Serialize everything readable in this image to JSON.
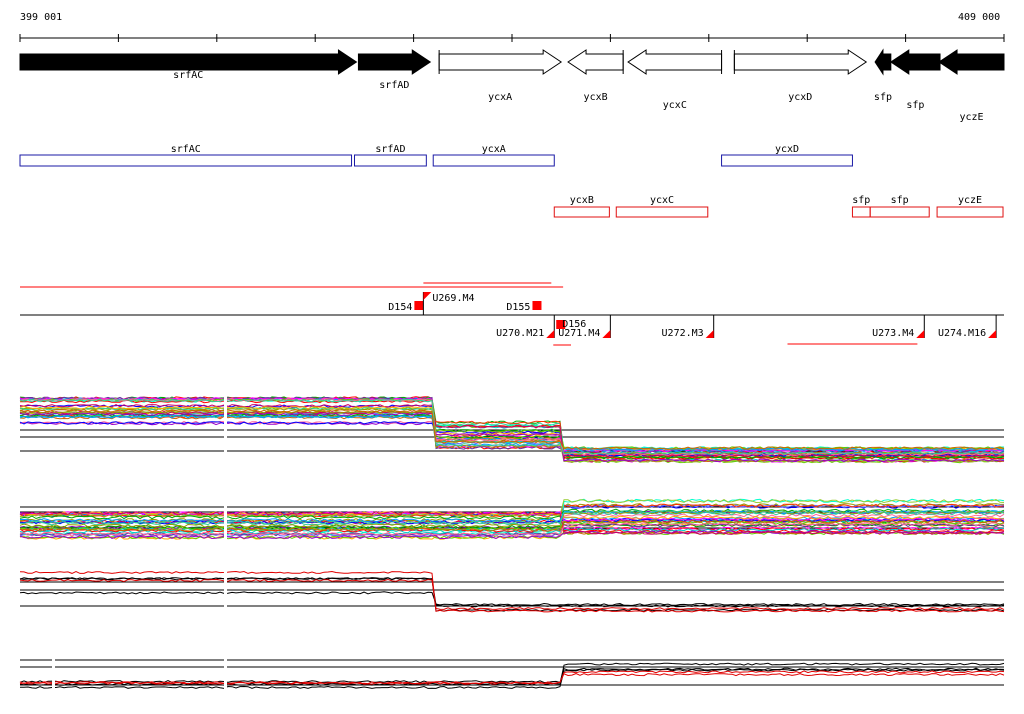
{
  "ruler": {
    "start_label": "399 001",
    "end_label": "409 000",
    "tick_count": 11
  },
  "colors": {
    "filled_gene": "#000000",
    "outline_gene": "#000000",
    "forward_box": "#1a1aa6",
    "reverse_box": "#e01010",
    "segment": "#ff0000",
    "line_black": "#000000",
    "line_red": "#e00000"
  },
  "gene_arrows": [
    {
      "label": "srfAC",
      "start": 399001,
      "end": 402420,
      "strand": "+",
      "filled": true
    },
    {
      "label": "srfAD",
      "start": 402440,
      "end": 403170,
      "strand": "+",
      "filled": true
    },
    {
      "label": "ycxA",
      "start": 403260,
      "end": 404500,
      "strand": "+",
      "filled": false
    },
    {
      "label": "ycxB",
      "start": 404570,
      "end": 405130,
      "strand": "-",
      "filled": false
    },
    {
      "label": "ycxC",
      "start": 405180,
      "end": 406130,
      "strand": "-",
      "filled": false
    },
    {
      "label": "ycxD",
      "start": 406260,
      "end": 407600,
      "strand": "+",
      "filled": false
    },
    {
      "label": "sfp",
      "start": 407690,
      "end": 407850,
      "strand": "-",
      "filled": true
    },
    {
      "label": "sfp",
      "start": 407850,
      "end": 408350,
      "strand": "-",
      "filled": true
    },
    {
      "label": "yczE",
      "start": 408340,
      "end": 409000,
      "strand": "-",
      "filled": true
    }
  ],
  "forward_boxes": [
    {
      "label": "srfAC",
      "start": 399001,
      "end": 402370
    },
    {
      "label": "srfAD",
      "start": 402400,
      "end": 403130
    },
    {
      "label": "ycxA",
      "start": 403200,
      "end": 404430
    },
    {
      "label": "ycxD",
      "start": 406130,
      "end": 407460
    }
  ],
  "reverse_boxes": [
    {
      "label": "ycxB",
      "start": 404430,
      "end": 404990
    },
    {
      "label": "ycxC",
      "start": 405060,
      "end": 405990
    },
    {
      "label": "sfp",
      "start": 407460,
      "end": 407640
    },
    {
      "label": "sfp",
      "start": 407640,
      "end": 408240
    },
    {
      "label": "yczE",
      "start": 408320,
      "end": 408990
    }
  ],
  "segments": [
    {
      "label": "D154",
      "start": 403000,
      "end": 403100,
      "row": "upper",
      "type": "square"
    },
    {
      "label": "U269.M4",
      "start": 403100,
      "end": 404400,
      "row": "upper",
      "type": "flag"
    },
    {
      "label": "D155",
      "start": 404200,
      "end": 404300,
      "row": "upper",
      "type": "square"
    },
    {
      "label": "D156",
      "start": 404450,
      "end": 404560,
      "row": "lower",
      "type": "square"
    },
    {
      "label": "U270.M21",
      "start": 403900,
      "end": 404430,
      "row": "lower",
      "type": "flag"
    },
    {
      "label": "U271.M4",
      "start": 404460,
      "end": 405000,
      "row": "lower",
      "type": "flag"
    },
    {
      "label": "U272.M3",
      "start": 405100,
      "end": 406050,
      "row": "lower",
      "type": "flag"
    },
    {
      "label": "U273.M4",
      "start": 406600,
      "end": 408190,
      "row": "lower",
      "type": "flag"
    },
    {
      "label": "U274.M16",
      "start": 408200,
      "end": 408920,
      "row": "lower",
      "type": "flag"
    }
  ],
  "tracks": {
    "track1_breakpoints": [
      403200,
      404520
    ],
    "track2_breakpoint": 404520,
    "track3_breakpoint": 403200,
    "track4_breakpoint": 404520
  }
}
